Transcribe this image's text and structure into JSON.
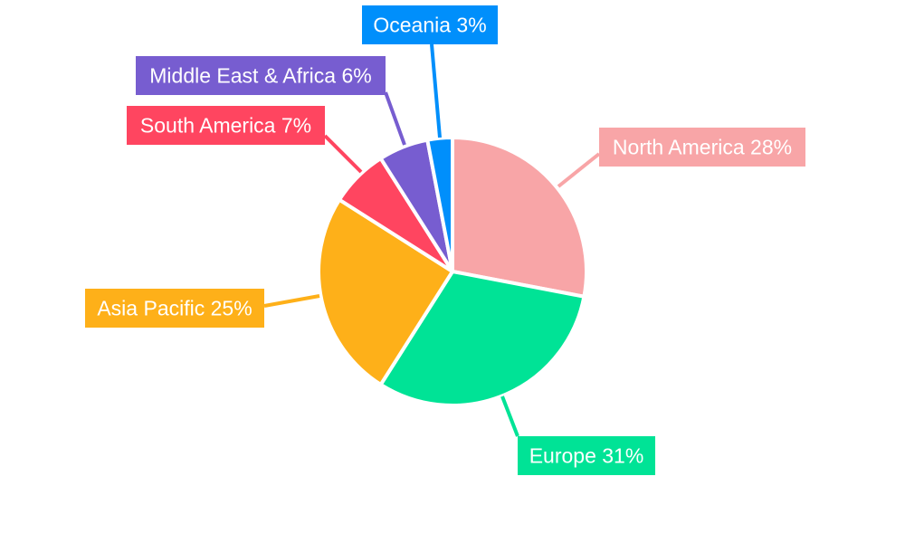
{
  "chart_data": {
    "type": "pie",
    "title": "",
    "slices": [
      {
        "label": "North America",
        "value": 28,
        "display": "North America 28%",
        "color": "#F8A5A7"
      },
      {
        "label": "Europe",
        "value": 31,
        "display": "Europe 31%",
        "color": "#00E396"
      },
      {
        "label": "Asia Pacific",
        "value": 25,
        "display": "Asia Pacific 25%",
        "color": "#FEB019"
      },
      {
        "label": "South America",
        "value": 7,
        "display": "South America 7%",
        "color": "#FF4560"
      },
      {
        "label": "Middle East & Africa",
        "value": 6,
        "display": "Middle East & Africa 6%",
        "color": "#775DD0"
      },
      {
        "label": "Oceania",
        "value": 3,
        "display": "Oceania 3%",
        "color": "#008FFB"
      }
    ],
    "start_angle_deg": 0,
    "direction": "clockwise",
    "legend": "none"
  }
}
